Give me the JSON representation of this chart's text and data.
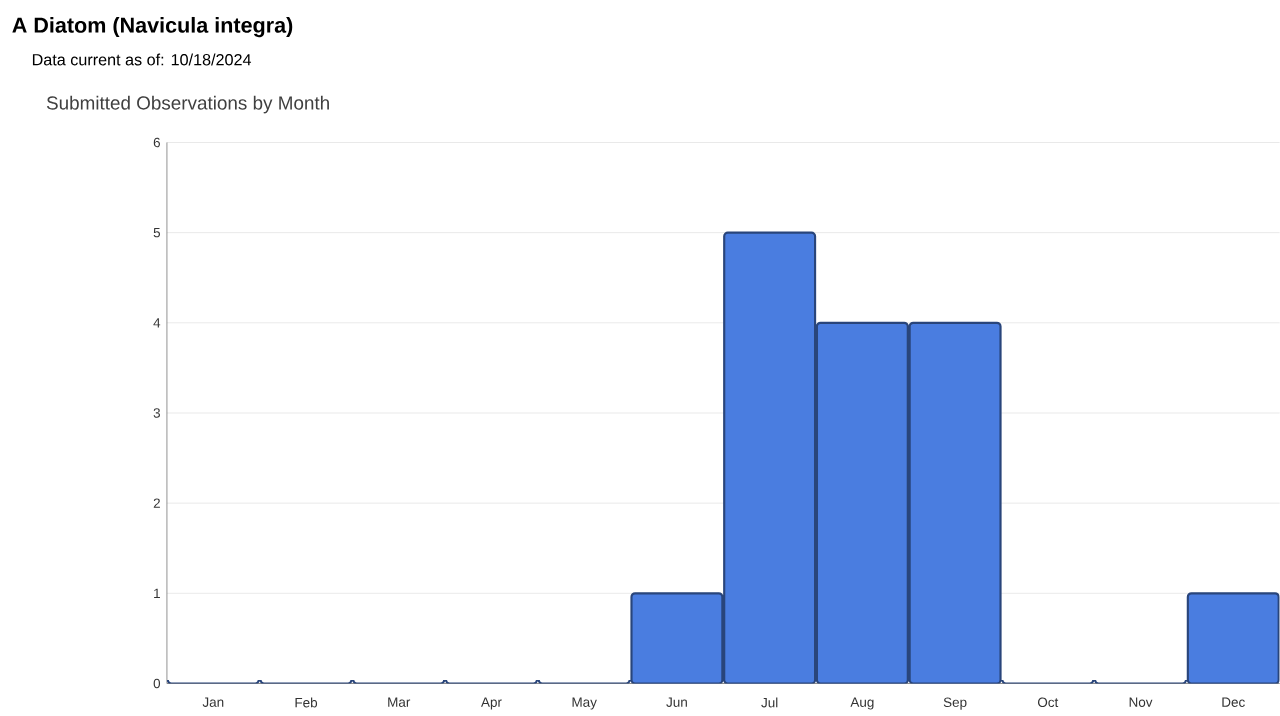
{
  "chart_data": {
    "type": "bar",
    "title": "A Diatom   (Navicula integra)",
    "subtitle": "Data current as of: 10/18/2024",
    "annotations": [
      "Submitted Observations by Month"
    ],
    "categories": [
      "Jan",
      "Feb",
      "Mar",
      "Apr",
      "May",
      "Jun",
      "Jul",
      "Aug",
      "Sep",
      "Oct",
      "Nov",
      "Dec"
    ],
    "values": [
      0,
      0,
      0,
      0,
      0,
      1,
      5,
      4,
      4,
      0,
      0,
      1
    ],
    "color": "#4a7de0",
    "ylim": [
      0,
      6
    ],
    "yticks": [
      0,
      1,
      2,
      3,
      4,
      5,
      6
    ],
    "grid": "y"
  }
}
